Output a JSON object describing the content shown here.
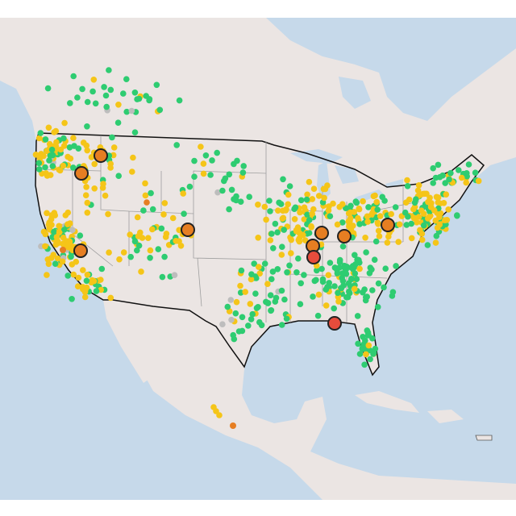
{
  "map": {
    "marker_colors": [
      "#2ecc71",
      "#f5c518",
      "#e67e22",
      "#e74c3c",
      "#bdbdbd"
    ]
  }
}
